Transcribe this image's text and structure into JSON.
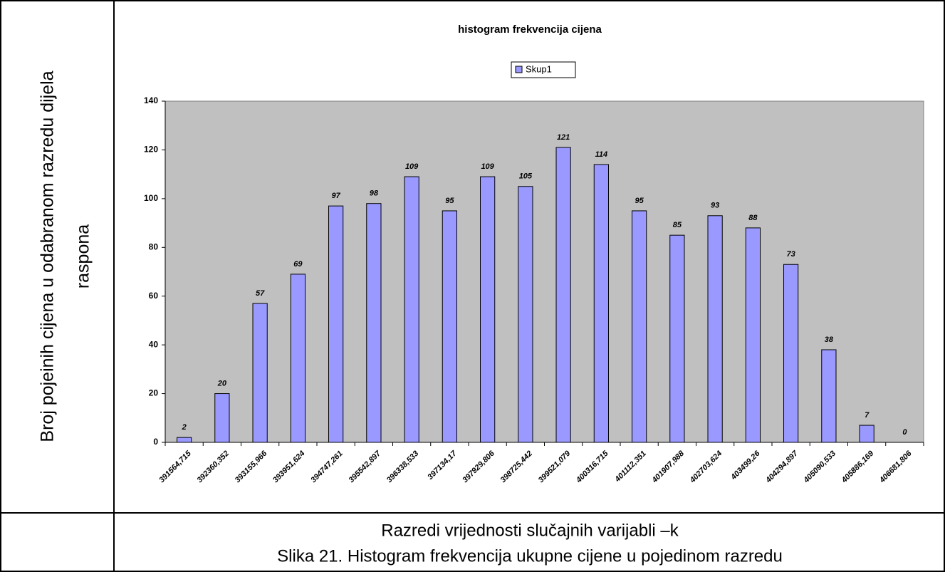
{
  "chart_data": {
    "type": "bar",
    "title": "histogram frekvencija cijena",
    "ylabel": [
      "Broj pojeinih cijena u odabranom razredu  dijela",
      "raspona"
    ],
    "xlabel": "Razredi vrijednosti slučajnih varijabli –k",
    "caption": "Slika 21. Histogram frekvencija ukupne cijene u pojedinom razredu",
    "categories": [
      "391564,715",
      "392360,352",
      "393155,966",
      "393951,624",
      "394747,261",
      "395542,897",
      "396338,533",
      "397134,17",
      "397929,806",
      "398725,442",
      "399521,079",
      "400316,715",
      "401112,351",
      "401907,988",
      "402703,624",
      "403499,26",
      "404294,897",
      "405090,533",
      "405886,169",
      "406681,806"
    ],
    "series": [
      {
        "name": "Skup1",
        "color": "#9999ff",
        "values": [
          2,
          20,
          57,
          69,
          97,
          98,
          109,
          95,
          109,
          105,
          121,
          114,
          95,
          85,
          93,
          88,
          73,
          38,
          7,
          0
        ]
      }
    ],
    "ylim": [
      0,
      140
    ],
    "yticks": [
      0,
      20,
      40,
      60,
      80,
      100,
      120,
      140
    ],
    "legend": "top",
    "plot_background": "#c0c0c0"
  }
}
